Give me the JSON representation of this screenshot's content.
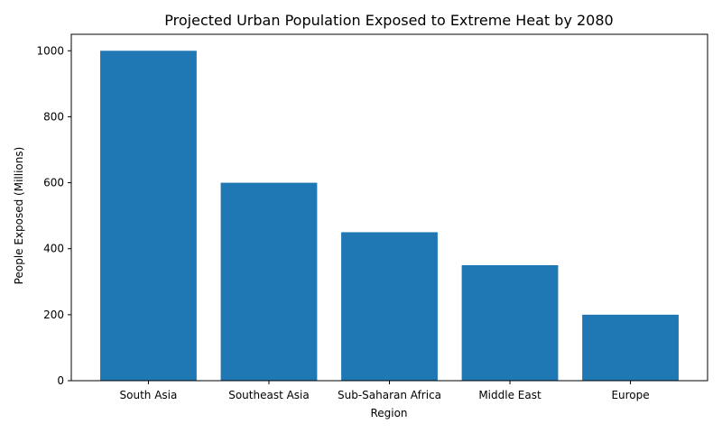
{
  "chart_data": {
    "type": "bar",
    "title": "Projected Urban Population Exposed to Extreme Heat by 2080",
    "xlabel": "Region",
    "ylabel": "People Exposed (Millions)",
    "categories": [
      "South Asia",
      "Southeast Asia",
      "Sub-Saharan Africa",
      "Middle East",
      "Europe"
    ],
    "values": [
      1000,
      600,
      450,
      350,
      200
    ],
    "ylim": [
      0,
      1050
    ],
    "yticks": [
      0,
      200,
      400,
      600,
      800,
      1000
    ],
    "grid": false,
    "bar_color": "#1f77b4"
  }
}
